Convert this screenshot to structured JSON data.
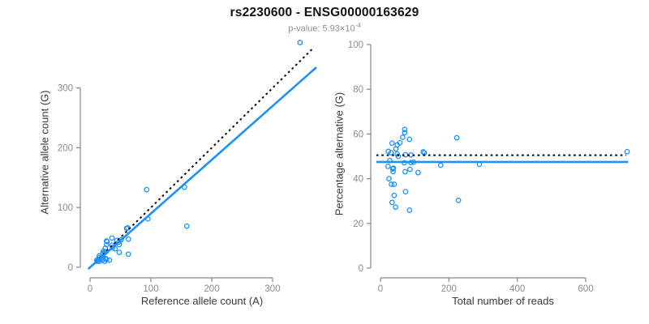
{
  "header": {
    "title": "rs2230600 - ENSG00000163629",
    "subtitle_prefix": "p-value: 5.93×10",
    "subtitle_exponent": "-4"
  },
  "colors": {
    "point_blue": "#1E90FF",
    "fit_line_blue": "#1E90FF",
    "dotted_line_black": "#000000",
    "axis_gray": "#888888",
    "tick_label_gray": "#8c8c8c",
    "axis_title_gray": "#3a3a3a"
  },
  "chart_data": [
    {
      "type": "scatter",
      "name": "allele-counts-plot",
      "xlabel": "Reference allele count (A)",
      "ylabel": "Alternative allele count (G)",
      "xticks": [
        0,
        100,
        200,
        300
      ],
      "yticks": [
        0,
        100,
        200,
        300
      ],
      "xlim": [
        -14,
        372
      ],
      "ylim": [
        -15,
        380
      ],
      "grid": false,
      "points": [
        [
          345,
          376
        ],
        [
          93,
          130
        ],
        [
          155,
          134
        ],
        [
          159,
          69
        ],
        [
          95,
          81
        ],
        [
          60,
          65
        ],
        [
          62,
          66
        ],
        [
          27,
          44
        ],
        [
          28,
          43
        ],
        [
          36,
          49
        ],
        [
          27,
          38
        ],
        [
          25,
          32
        ],
        [
          22,
          27
        ],
        [
          15,
          19
        ],
        [
          21,
          24
        ],
        [
          11,
          12
        ],
        [
          15,
          16
        ],
        [
          24,
          25
        ],
        [
          26,
          26
        ],
        [
          36,
          37
        ],
        [
          44,
          45
        ],
        [
          14,
          13
        ],
        [
          37,
          33
        ],
        [
          51,
          46
        ],
        [
          12,
          10
        ],
        [
          20,
          16
        ],
        [
          21,
          17
        ],
        [
          21,
          16
        ],
        [
          41,
          31
        ],
        [
          48,
          38
        ],
        [
          63,
          47
        ],
        [
          15,
          10
        ],
        [
          20,
          12
        ],
        [
          25,
          15
        ],
        [
          48,
          25
        ],
        [
          27,
          13
        ],
        [
          24,
          10
        ],
        [
          32,
          12
        ],
        [
          63,
          22
        ],
        [
          47,
          42
        ]
      ],
      "lines": [
        {
          "name": "identity-line",
          "style": "dotted",
          "color": "#000000",
          "x1": -3,
          "y1": -3,
          "x2": 367,
          "y2": 367
        },
        {
          "name": "fit-line",
          "style": "solid",
          "color": "#1E90FF",
          "x1": -3,
          "y1": -2.7,
          "x2": 372,
          "y2": 334.5
        }
      ]
    },
    {
      "type": "scatter",
      "name": "percentage-vs-reads-plot",
      "xlabel": "Total number of reads",
      "ylabel": "Percentage alternative (G)",
      "xticks": [
        0,
        200,
        400,
        600
      ],
      "yticks": [
        0,
        20,
        40,
        60,
        80,
        100
      ],
      "xlim": [
        -12,
        724
      ],
      "ylim": [
        0,
        100
      ],
      "grid": false,
      "points": [
        [
          721,
          52.1
        ],
        [
          223,
          58.3
        ],
        [
          289,
          46.4
        ],
        [
          228,
          30.3
        ],
        [
          176,
          46.0
        ],
        [
          125,
          52.0
        ],
        [
          128,
          51.6
        ],
        [
          71,
          62.0
        ],
        [
          71,
          60.6
        ],
        [
          85,
          57.6
        ],
        [
          65,
          58.5
        ],
        [
          57,
          56.1
        ],
        [
          49,
          55.1
        ],
        [
          34,
          55.9
        ],
        [
          45,
          53.3
        ],
        [
          23,
          52.2
        ],
        [
          31,
          51.6
        ],
        [
          49,
          51.0
        ],
        [
          52,
          50.0
        ],
        [
          73,
          50.7
        ],
        [
          89,
          50.6
        ],
        [
          27,
          48.1
        ],
        [
          70,
          47.1
        ],
        [
          97,
          47.4
        ],
        [
          22,
          45.5
        ],
        [
          36,
          44.4
        ],
        [
          38,
          44.7
        ],
        [
          37,
          43.2
        ],
        [
          72,
          43.1
        ],
        [
          86,
          44.2
        ],
        [
          110,
          42.7
        ],
        [
          25,
          40.0
        ],
        [
          32,
          37.5
        ],
        [
          40,
          37.5
        ],
        [
          73,
          34.2
        ],
        [
          40,
          32.5
        ],
        [
          34,
          29.4
        ],
        [
          44,
          27.3
        ],
        [
          85,
          25.9
        ],
        [
          89,
          47.2
        ]
      ],
      "lines": [
        {
          "name": "expected-50pct-line",
          "style": "dotted",
          "color": "#000000",
          "x1": -12,
          "y1": 50.5,
          "x2": 718,
          "y2": 50.5
        },
        {
          "name": "fit-line",
          "style": "solid",
          "color": "#1E90FF",
          "x1": -12,
          "y1": 47.5,
          "x2": 724,
          "y2": 47.5
        }
      ]
    }
  ]
}
